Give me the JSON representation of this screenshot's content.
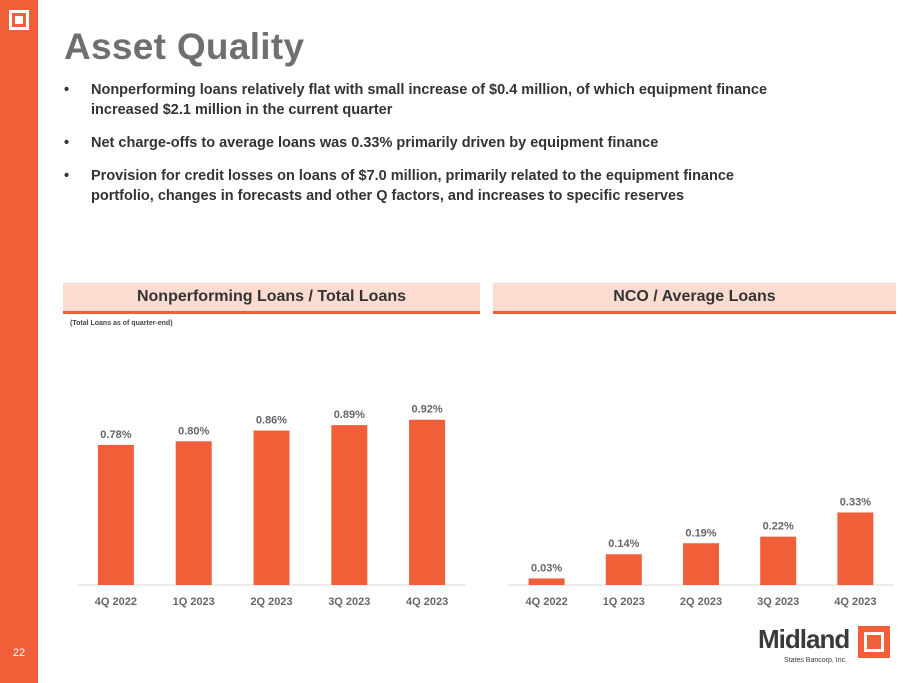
{
  "slide": {
    "title": "Asset Quality",
    "page_number": "22",
    "bullets": [
      "Nonperforming loans relatively flat with small increase of $0.4 million, of which equipment finance increased $2.1 million in the current quarter",
      "Net charge-offs to average loans was 0.33% primarily driven by equipment finance",
      "Provision for credit losses on loans of $7.0 million, primarily related to the equipment finance portfolio, changes in forecasts and other Q factors, and increases to specific reserves"
    ],
    "bullet_marker": "•",
    "accent_color": "#f05f38",
    "header_fill": "#fcdcd0"
  },
  "logo": {
    "name": "Midland",
    "subtitle": "States Bancorp, Inc."
  },
  "chart_data": [
    {
      "type": "bar",
      "title": "Nonperforming Loans / Total Loans",
      "subtitle": "(Total Loans as of quarter-end)",
      "categories": [
        "4Q 2022",
        "1Q 2023",
        "2Q 2023",
        "3Q 2023",
        "4Q 2023"
      ],
      "values": [
        0.78,
        0.8,
        0.86,
        0.89,
        0.92
      ],
      "data_labels": [
        "0.78%",
        "0.80%",
        "0.86%",
        "0.89%",
        "0.92%"
      ],
      "ylim": [
        0,
        1.08
      ]
    },
    {
      "type": "bar",
      "title": "NCO / Average Loans",
      "categories": [
        "4Q 2022",
        "1Q 2023",
        "2Q 2023",
        "3Q 2023",
        "4Q 2023"
      ],
      "values": [
        0.03,
        0.14,
        0.19,
        0.22,
        0.33
      ],
      "data_labels": [
        "0.03%",
        "0.14%",
        "0.19%",
        "0.22%",
        "0.33%"
      ],
      "ylim": [
        0,
        0.76
      ]
    }
  ]
}
